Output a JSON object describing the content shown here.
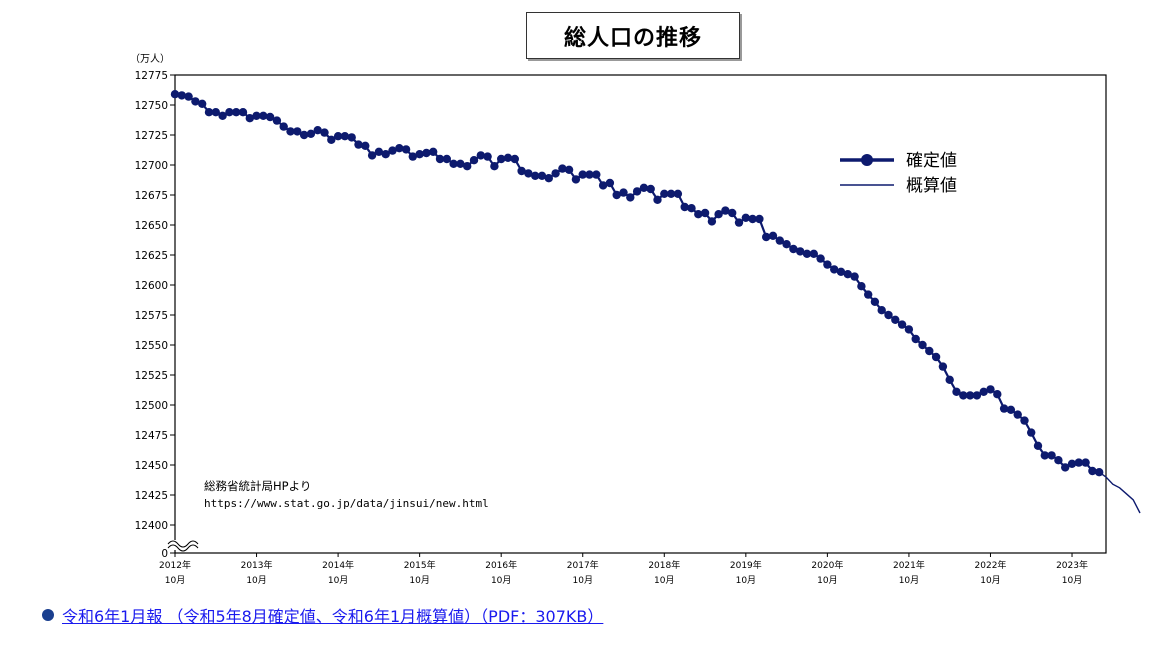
{
  "chart_data": {
    "type": "line",
    "title": "総人口の推移",
    "ylabel": "（万人）",
    "ylim": [
      12400,
      12775
    ],
    "yticks": [
      0,
      12400,
      12425,
      12450,
      12475,
      12500,
      12525,
      12550,
      12575,
      12600,
      12625,
      12650,
      12675,
      12700,
      12725,
      12750,
      12775
    ],
    "y_break": true,
    "x_labels": [
      {
        "year": "2012年",
        "month": "10月"
      },
      {
        "year": "2013年",
        "month": "10月"
      },
      {
        "year": "2014年",
        "month": "10月"
      },
      {
        "year": "2015年",
        "month": "10月"
      },
      {
        "year": "2016年",
        "month": "10月"
      },
      {
        "year": "2017年",
        "month": "10月"
      },
      {
        "year": "2018年",
        "month": "10月"
      },
      {
        "year": "2019年",
        "month": "10月"
      },
      {
        "year": "2020年",
        "month": "10月"
      },
      {
        "year": "2021年",
        "month": "10月"
      },
      {
        "year": "2022年",
        "month": "10月"
      },
      {
        "year": "2023年",
        "month": "10月"
      }
    ],
    "x_start": "2012-10",
    "series": [
      {
        "name": "確定値",
        "color": "#0d1a6e",
        "marker": "circle",
        "values": [
          12759,
          12758,
          12757,
          12753,
          12751,
          12744,
          12744,
          12741,
          12744,
          12744,
          12744,
          12739,
          12741,
          12741,
          12740,
          12737,
          12732,
          12728,
          12728,
          12725,
          12726,
          12729,
          12727,
          12721,
          12724,
          12724,
          12723,
          12717,
          12716,
          12708,
          12711,
          12709,
          12712,
          12714,
          12713,
          12707,
          12709,
          12710,
          12711,
          12705,
          12705,
          12701,
          12701,
          12699,
          12704,
          12708,
          12707,
          12699,
          12705,
          12706,
          12705,
          12695,
          12693,
          12691,
          12691,
          12689,
          12693,
          12697,
          12696,
          12688,
          12692,
          12692,
          12692,
          12683,
          12685,
          12675,
          12677,
          12673,
          12678,
          12681,
          12680,
          12671,
          12676,
          12676,
          12676,
          12665,
          12664,
          12659,
          12660,
          12653,
          12659,
          12662,
          12660,
          12652,
          12656,
          12655,
          12655,
          12640,
          12641,
          12637,
          12634,
          12630,
          12628,
          12626,
          12626,
          12622,
          12617,
          12613,
          12611,
          12609,
          12607,
          12599,
          12592,
          12586,
          12579,
          12575,
          12571,
          12567,
          12563,
          12555,
          12550,
          12545,
          12540,
          12532,
          12521,
          12511,
          12508,
          12508,
          12508,
          12511,
          12513,
          12509,
          12497,
          12496,
          12492,
          12487,
          12477,
          12466,
          12458,
          12458,
          12454,
          12448,
          12451,
          12452,
          12452,
          12445,
          12444
        ]
      },
      {
        "name": "概算値",
        "color": "#0d1a6e",
        "marker": "none",
        "values": [
          12444,
          12440,
          12434,
          12431,
          12426,
          12421,
          12410
        ]
      }
    ],
    "annotation": {
      "line1": "総務省統計局HPより",
      "line2": "https://www.stat.go.jp/data/jinsui/new.html"
    },
    "legend_position": "top-right"
  },
  "report_link": {
    "text": "令和6年1月報 （令和5年8月確定値、令和6年1月概算値）（PDF：307KB）"
  }
}
